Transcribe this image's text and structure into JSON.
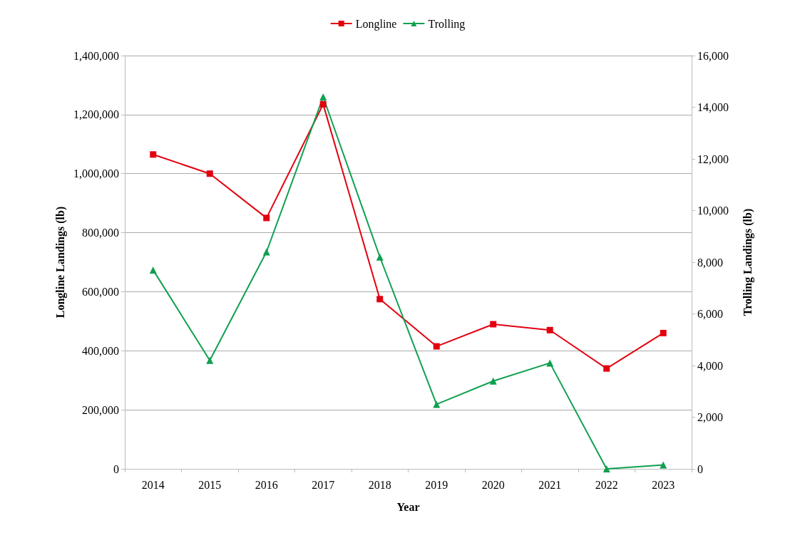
{
  "chart_data": {
    "type": "line",
    "xlabel": "Year",
    "ylabel": "Longline Landings (lb)",
    "y2label": "Trolling Landings (lb)",
    "categories": [
      "2014",
      "2015",
      "2016",
      "2017",
      "2018",
      "2019",
      "2020",
      "2021",
      "2022",
      "2023"
    ],
    "series": [
      {
        "name": "Longline",
        "color": "#e3000f",
        "marker": "square",
        "values": [
          1065000,
          1000000,
          850000,
          1235000,
          575000,
          415000,
          490000,
          470000,
          340000,
          460000
        ]
      },
      {
        "name": "Trolling",
        "color": "#10a050",
        "marker": "triangle",
        "axis": "y2",
        "values": [
          7700,
          4200,
          8400,
          14400,
          8200,
          2500,
          3400,
          4100,
          0,
          150
        ]
      }
    ],
    "ylim": [
      0,
      1400000
    ],
    "yticks": [
      0,
      {
        "value": 200000,
        "label": "200,000"
      },
      {
        "value": 400000,
        "label": "400,000"
      },
      {
        "value": 600000,
        "label": "600,000"
      },
      {
        "value": 800000,
        "label": "800,000"
      },
      {
        "value": 1000000,
        "label": "1,000,000"
      },
      {
        "value": 1200000,
        "label": "1,200,000"
      },
      {
        "value": 1400000,
        "label": "1,400,000"
      }
    ],
    "y2lim": [
      0,
      16000
    ],
    "y2ticks": [
      0,
      {
        "value": 2000,
        "label": "2,000"
      },
      {
        "value": 4000,
        "label": "4,000"
      },
      {
        "value": 6000,
        "label": "6,000"
      },
      {
        "value": 8000,
        "label": "8,000"
      },
      {
        "value": 10000,
        "label": "10,000"
      },
      {
        "value": 12000,
        "label": "12,000"
      },
      {
        "value": 14000,
        "label": "14,000"
      },
      {
        "value": 16000,
        "label": "16,000"
      }
    ],
    "grid": "y",
    "legend": "top",
    "line_style": "solid"
  }
}
